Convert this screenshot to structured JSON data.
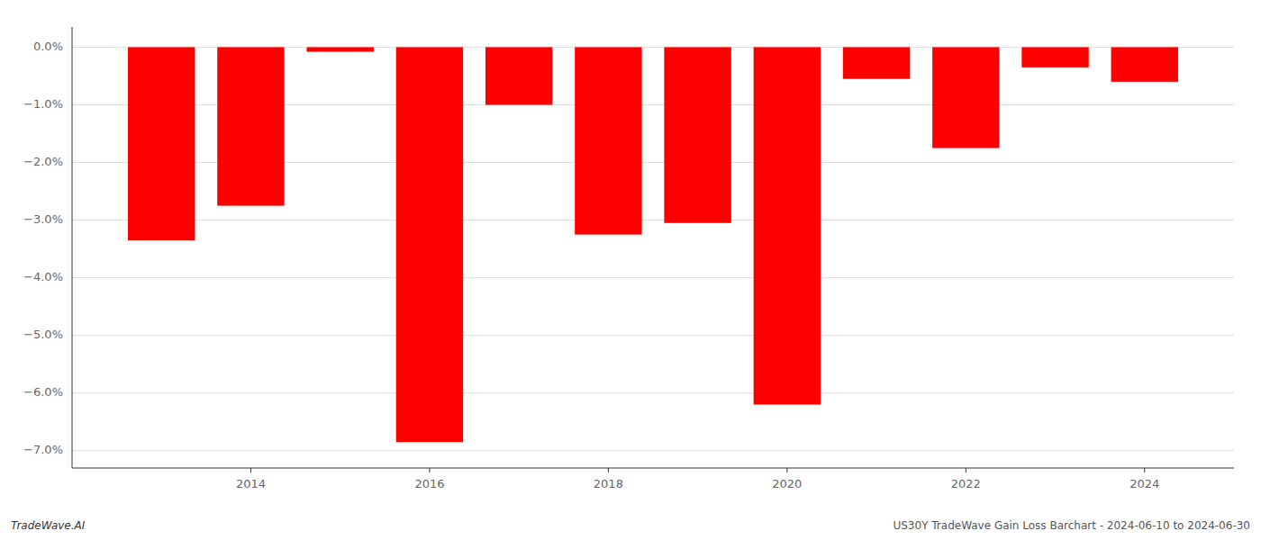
{
  "chart_data": {
    "type": "bar",
    "x": [
      2013,
      2014,
      2015,
      2016,
      2017,
      2018,
      2019,
      2020,
      2021,
      2022,
      2023,
      2024
    ],
    "values": [
      -3.35,
      -2.75,
      -0.08,
      -6.85,
      -1.0,
      -3.25,
      -3.05,
      -6.2,
      -0.55,
      -1.75,
      -0.35,
      -0.6
    ],
    "color": "#ff0000",
    "xlim": [
      2012,
      2025
    ],
    "xticks": [
      2014,
      2016,
      2018,
      2020,
      2022,
      2024
    ],
    "ylim": [
      -7.3,
      0.35
    ],
    "yticks": [
      {
        "value": 0.0,
        "label": "0.0%"
      },
      {
        "value": -1.0,
        "label": "−1.0%"
      },
      {
        "value": -2.0,
        "label": "−2.0%"
      },
      {
        "value": -3.0,
        "label": "−3.0%"
      },
      {
        "value": -4.0,
        "label": "−4.0%"
      },
      {
        "value": -5.0,
        "label": "−5.0%"
      },
      {
        "value": -6.0,
        "label": "−6.0%"
      },
      {
        "value": -7.0,
        "label": "−7.0%"
      }
    ],
    "grid": true,
    "annotations": [
      "TradeWave.AI",
      "US30Y TradeWave Gain Loss Barchart - 2024-06-10 to 2024-06-30"
    ]
  }
}
